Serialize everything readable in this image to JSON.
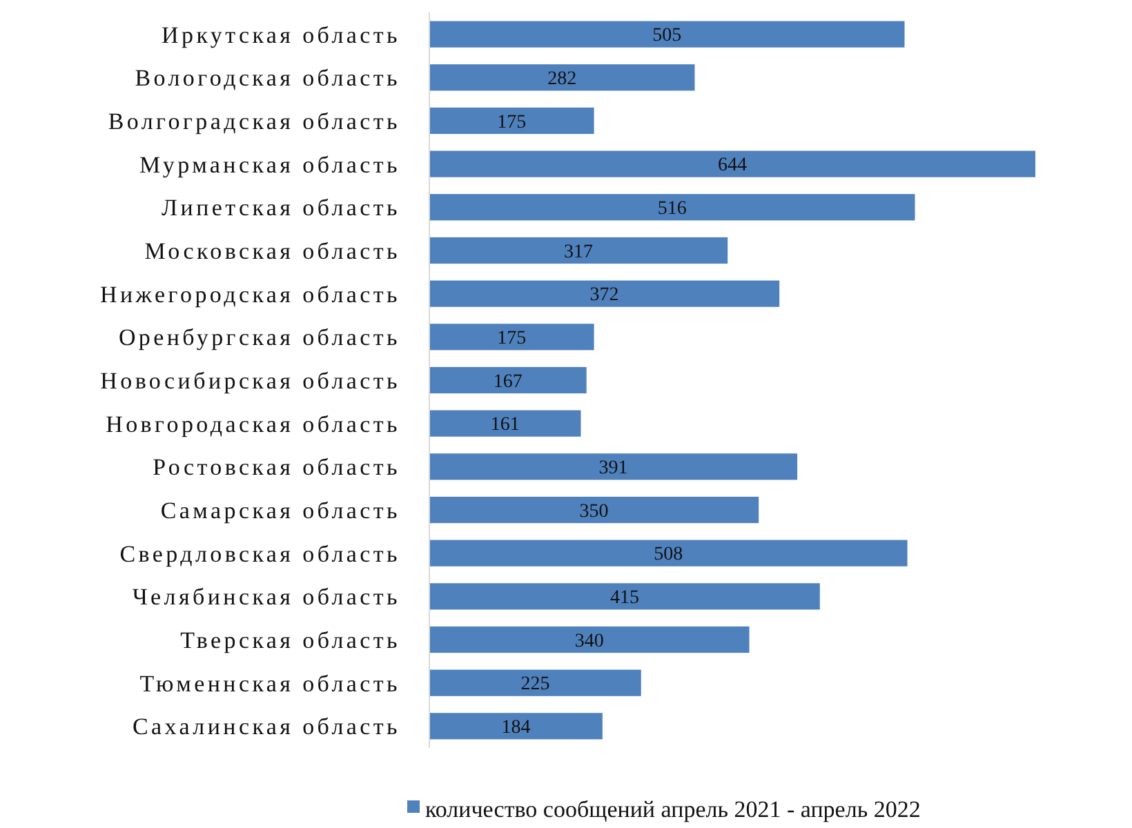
{
  "chart_data": {
    "type": "bar",
    "orientation": "horizontal",
    "categories": [
      "Иркутская область",
      "Вологодская область",
      "Волгоградская область",
      "Мурманская область",
      "Липетская область",
      "Московская область",
      "Нижегородская область",
      "Оренбургская область",
      "Новосибирская область",
      "Новгородаская область",
      "Ростовская область",
      "Самарская область",
      "Свердловская область",
      "Челябинская область",
      "Тверская область",
      "Тюменнская область",
      "Сахалинская область"
    ],
    "series": [
      {
        "name": "количество сообщений апрель 2021 - апрель 2022",
        "color": "#4f81bd",
        "values": [
          505,
          282,
          175,
          644,
          516,
          317,
          372,
          175,
          167,
          161,
          391,
          350,
          508,
          415,
          340,
          225,
          184
        ]
      }
    ],
    "data_labels": true,
    "legend": "bottom"
  }
}
